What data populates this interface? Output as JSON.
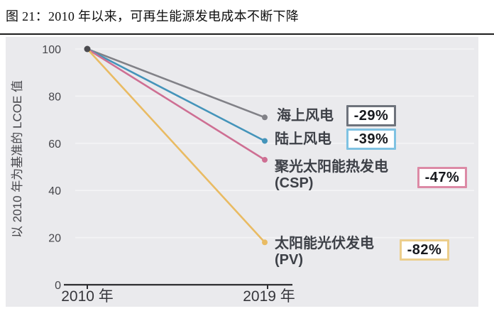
{
  "figure": {
    "title": "图 21：2010 年以来，可再生能源发电成本不断下降"
  },
  "chart_data": {
    "type": "line",
    "title": "2010 年以来，可再生能源发电成本不断下降",
    "xlabel": "",
    "ylabel": "以 2010 年为基准的 LCOE 值",
    "x_categories": [
      "2010 年",
      "2019 年"
    ],
    "ylim": [
      0,
      100
    ],
    "yticks": [
      0,
      20,
      40,
      60,
      80,
      100
    ],
    "grid": true,
    "legend_position": "right-of-line-endpoints",
    "series": [
      {
        "name": "海上风电",
        "name_sub": "",
        "values": [
          100,
          71
        ],
        "change": "-29%",
        "color": "#818187",
        "badge_border": "#6e737c"
      },
      {
        "name": "陆上风电",
        "name_sub": "",
        "values": [
          100,
          61
        ],
        "change": "-39%",
        "color": "#4494ba",
        "badge_border": "#7fc2e2"
      },
      {
        "name": "聚光太阳能热发电",
        "name_sub": "(CSP)",
        "values": [
          100,
          53
        ],
        "change": "-47%",
        "color": "#ce6f93",
        "badge_border": "#dc8aa6"
      },
      {
        "name": "太阳能光伏发电",
        "name_sub": "(PV)",
        "values": [
          100,
          18
        ],
        "change": "-82%",
        "color": "#e9bb63",
        "badge_border": "#ecce8c"
      }
    ]
  }
}
